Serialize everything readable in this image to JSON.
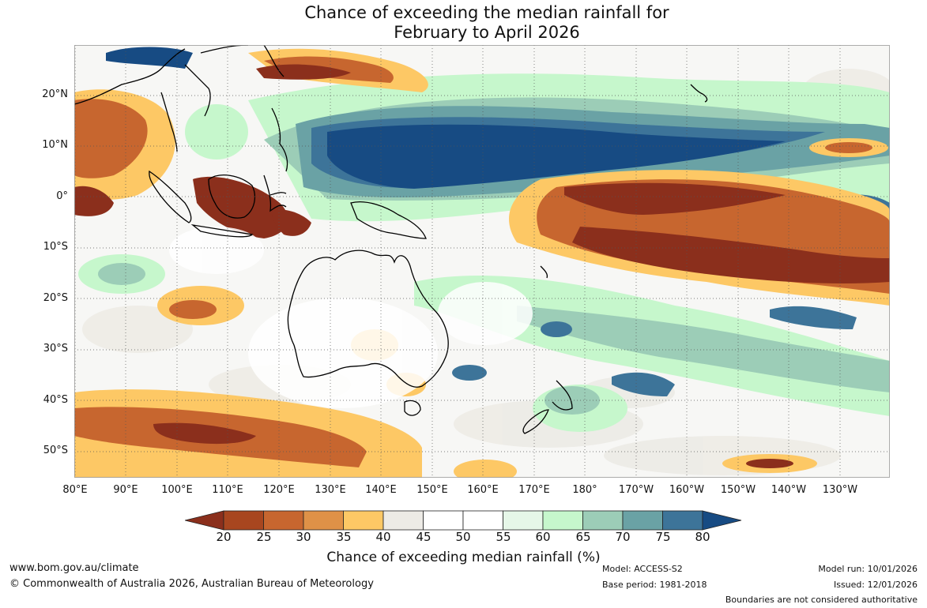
{
  "title": {
    "line1": "Chance of exceeding the median rainfall for",
    "line2": "February to April 2026"
  },
  "latitude_labels": [
    "20°N",
    "10°N",
    "0°",
    "10°S",
    "20°S",
    "30°S",
    "40°S",
    "50°S"
  ],
  "longitude_labels": [
    "80°E",
    "90°E",
    "100°E",
    "110°E",
    "120°E",
    "130°E",
    "140°E",
    "150°E",
    "160°E",
    "170°E",
    "180°",
    "170°W",
    "160°W",
    "150°W",
    "140°W",
    "130°W"
  ],
  "colorbar": {
    "ticks": [
      "20",
      "25",
      "30",
      "35",
      "40",
      "45",
      "50",
      "55",
      "60",
      "65",
      "70",
      "75",
      "80"
    ],
    "colors": [
      "#8b2f1c",
      "#a8461f",
      "#c7662f",
      "#df9147",
      "#fdc865",
      "#edebe6",
      "#ffffff",
      "#ffffff",
      "#e6f7e8",
      "#c6f7cc",
      "#9ccdb7",
      "#6aa2a5",
      "#3d7499",
      "#174b83"
    ],
    "label": "Chance of exceeding median rainfall (%)"
  },
  "footer": {
    "website": "www.bom.gov.au/climate",
    "copyright": "© Commonwealth of Australia 2026, Australian Bureau of Meteorology",
    "model": "Model: ACCESS-S2",
    "base_period": "Base period: 1981-2018",
    "model_run": "Model run: 10/01/2026",
    "issued": "Issued: 12/01/2026",
    "disclaimer": "Boundaries are not considered authoritative"
  }
}
